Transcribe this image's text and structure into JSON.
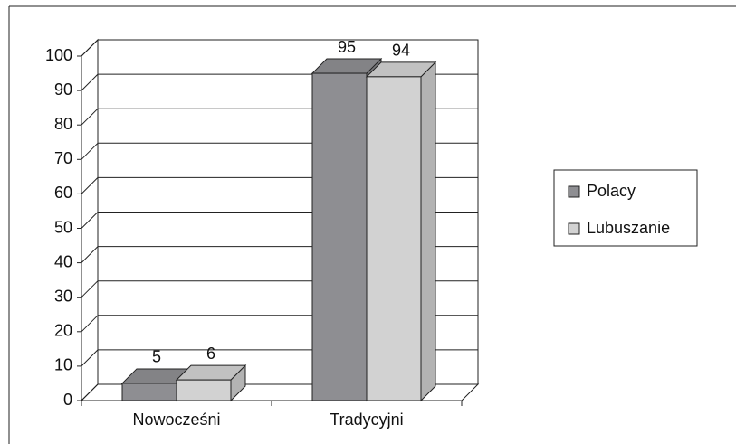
{
  "chart_data": {
    "type": "bar",
    "categories": [
      "Nowocześni",
      "Tradycyjni"
    ],
    "series": [
      {
        "name": "Polacy",
        "color": "#8e8e92",
        "values": [
          5,
          95
        ]
      },
      {
        "name": "Lubuszanie",
        "color": "#d2d2d2",
        "values": [
          6,
          94
        ]
      }
    ],
    "ylim": [
      0,
      100
    ],
    "yticks": [
      0,
      10,
      20,
      30,
      40,
      50,
      60,
      70,
      80,
      90,
      100
    ],
    "grid": true,
    "legend": "right"
  }
}
